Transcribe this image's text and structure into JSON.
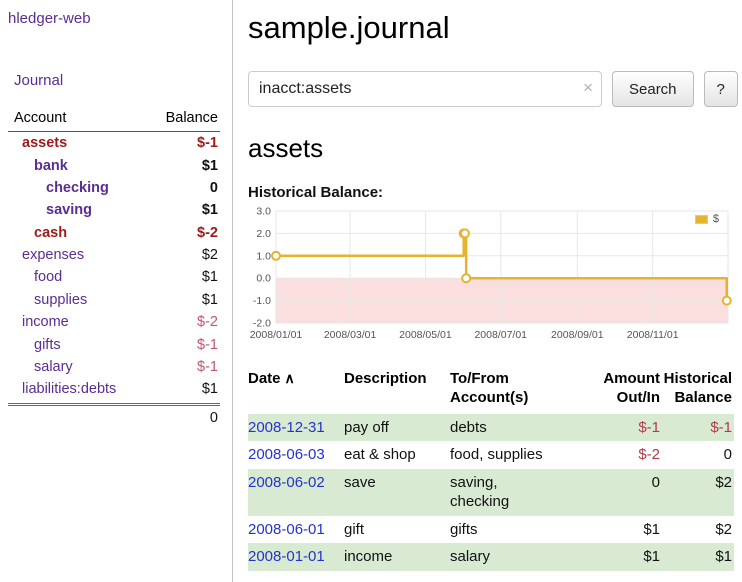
{
  "app": {
    "brand": "hledger-web",
    "nav": {
      "journal": "Journal"
    }
  },
  "sidebar": {
    "header": {
      "account": "Account",
      "balance": "Balance"
    },
    "accounts": [
      {
        "name": "assets",
        "balance": "$-1"
      },
      {
        "name": "bank",
        "balance": "$1"
      },
      {
        "name": "checking",
        "balance": "0"
      },
      {
        "name": "saving",
        "balance": "$1"
      },
      {
        "name": "cash",
        "balance": "$-2"
      },
      {
        "name": "expenses",
        "balance": "$2"
      },
      {
        "name": "food",
        "balance": "$1"
      },
      {
        "name": "supplies",
        "balance": "$1"
      },
      {
        "name": "income",
        "balance": "$-2"
      },
      {
        "name": "gifts",
        "balance": "$-1"
      },
      {
        "name": "salary",
        "balance": "$-1"
      },
      {
        "name": "liabilities:debts",
        "balance": "$1"
      }
    ],
    "total": "0"
  },
  "main": {
    "title": "sample.journal",
    "search": {
      "value": "inacct:assets",
      "clear_icon": "×",
      "button": "Search",
      "help_button": "?"
    },
    "account_heading": "assets",
    "chart_label": "Historical Balance:"
  },
  "register": {
    "headers": {
      "date": "Date",
      "sort_icon": "∧",
      "description": "Description",
      "account": "To/From\nAccount(s)",
      "amount": "Amount\nOut/In",
      "balance": "Historical\nBalance"
    },
    "rows": [
      {
        "date": "2008-12-31",
        "description": "pay off",
        "accounts": "debts",
        "amount": "$-1",
        "balance": "$-1"
      },
      {
        "date": "2008-06-03",
        "description": "eat & shop",
        "accounts": "food, supplies",
        "amount": "$-2",
        "balance": "0"
      },
      {
        "date": "2008-06-02",
        "description": "save",
        "accounts": "saving,\nchecking",
        "amount": "0",
        "balance": "$2"
      },
      {
        "date": "2008-06-01",
        "description": "gift",
        "accounts": "gifts",
        "amount": "$1",
        "balance": "$2"
      },
      {
        "date": "2008-01-01",
        "description": "income",
        "accounts": "salary",
        "amount": "$1",
        "balance": "$1"
      }
    ]
  },
  "chart_data": {
    "type": "line",
    "title": "Historical Balance",
    "style": "step",
    "legend": {
      "label": "$",
      "position": "top-right"
    },
    "x_axis": {
      "min_day": 0,
      "max_day": 366,
      "year": "2008"
    },
    "y_axis": {
      "min": -2,
      "max": 3
    },
    "y_ticks": [
      {
        "value": 3,
        "label": "3.0"
      },
      {
        "value": 2,
        "label": "2.0"
      },
      {
        "value": 1,
        "label": "1.0"
      },
      {
        "value": 0,
        "label": "0.0"
      },
      {
        "value": -1,
        "label": "-1.0"
      },
      {
        "value": -2,
        "label": "-2.0"
      }
    ],
    "x_ticks": [
      {
        "day": 0,
        "label": "2008/01/01"
      },
      {
        "day": 60,
        "label": "2008/03/01"
      },
      {
        "day": 121,
        "label": "2008/05/01"
      },
      {
        "day": 182,
        "label": "2008/07/01"
      },
      {
        "day": 244,
        "label": "2008/09/01"
      },
      {
        "day": 305,
        "label": "2008/11/01"
      }
    ],
    "series": [
      {
        "name": "$",
        "points": [
          {
            "date": "2008-01-01",
            "day": 0,
            "value": 1
          },
          {
            "date": "2008-06-01",
            "day": 152,
            "value": 2
          },
          {
            "date": "2008-06-02",
            "day": 153,
            "value": 2
          },
          {
            "date": "2008-06-03",
            "day": 154,
            "value": 0
          },
          {
            "date": "2008-12-31",
            "day": 365,
            "value": -1
          }
        ]
      }
    ],
    "colors": {
      "series": "#e6b32e",
      "negative_region": "#fbdfdf",
      "grid": "#e7e7e7"
    }
  }
}
